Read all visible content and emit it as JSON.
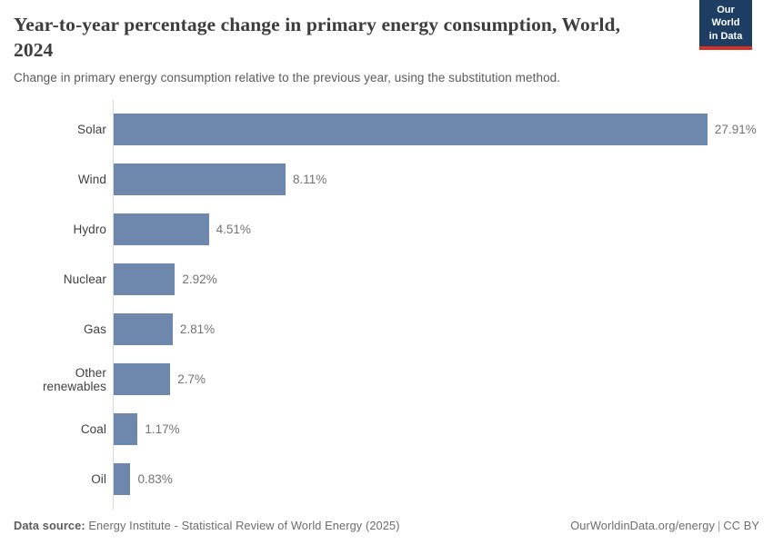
{
  "header": {
    "title": "Year-to-year percentage change in primary energy consumption, World, 2024",
    "subtitle": "Change in primary energy consumption relative to the previous year, using the substitution method.",
    "logo": {
      "line1": "Our World",
      "line2": "in Data",
      "bg_color": "#1d3d63",
      "stripe_color": "#d93025"
    }
  },
  "chart_data": {
    "type": "bar",
    "orientation": "horizontal",
    "categories": [
      "Solar",
      "Wind",
      "Hydro",
      "Nuclear",
      "Gas",
      "Other renewables",
      "Coal",
      "Oil"
    ],
    "values": [
      27.91,
      8.11,
      4.51,
      2.92,
      2.81,
      2.7,
      1.17,
      0.83
    ],
    "value_labels": [
      "27.91%",
      "8.11%",
      "4.51%",
      "2.92%",
      "2.81%",
      "2.7%",
      "1.17%",
      "0.83%"
    ],
    "unit": "%",
    "xlim": [
      0,
      30
    ],
    "grid": false,
    "bar_color": "#6e88ad",
    "axis_line_color": "#dadada"
  },
  "footer": {
    "datasource_label": "Data source:",
    "datasource_text": "Energy Institute - Statistical Review of World Energy (2025)",
    "credit_link": "OurWorldinData.org/energy",
    "credit_separator": "|",
    "credit_license": "CC BY"
  }
}
